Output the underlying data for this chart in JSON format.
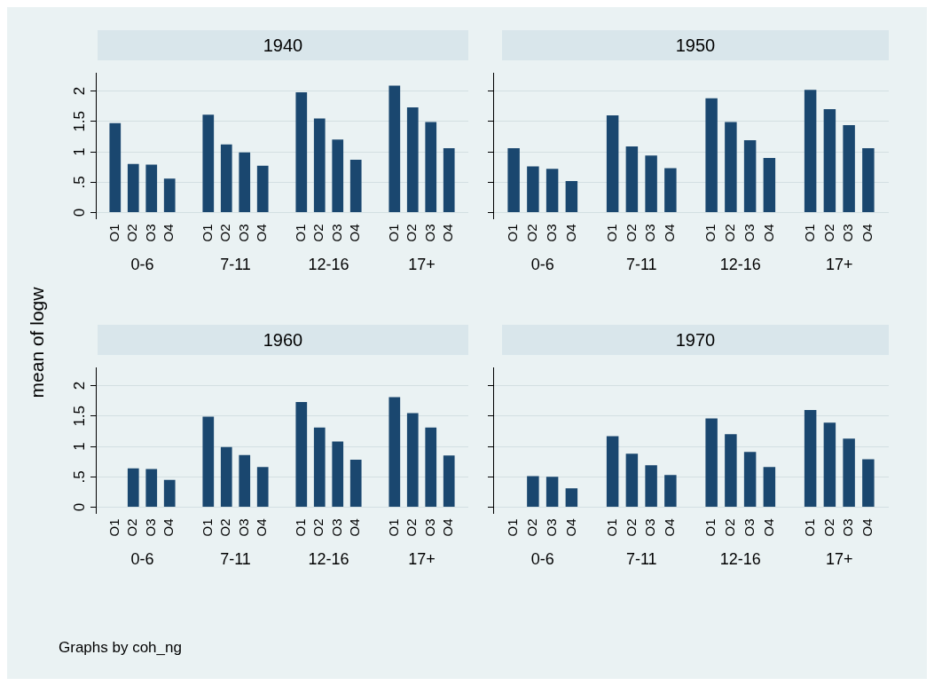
{
  "chart_data": [
    {
      "type": "bar",
      "title": "1940",
      "ylabel": "mean of logw",
      "categories": [
        "0-6",
        "7-11",
        "12-16",
        "17+"
      ],
      "grid": "y",
      "ylim": [
        -0.1,
        2.3
      ],
      "yticks": [
        0,
        {
          "value": 0.5,
          "label": ".5"
        },
        1,
        1.5,
        2
      ],
      "series": [
        {
          "name": "O1",
          "color": "#1a476f",
          "values": [
            1.47,
            1.61,
            1.98,
            2.09
          ]
        },
        {
          "name": "O2",
          "color": "#1a476f",
          "values": [
            0.8,
            1.12,
            1.55,
            1.73
          ]
        },
        {
          "name": "O3",
          "color": "#1a476f",
          "values": [
            0.79,
            0.99,
            1.2,
            1.49
          ]
        },
        {
          "name": "O4",
          "color": "#1a476f",
          "values": [
            0.56,
            0.77,
            0.87,
            1.06
          ]
        }
      ]
    },
    {
      "type": "bar",
      "title": "1950",
      "categories": [
        "0-6",
        "7-11",
        "12-16",
        "17+"
      ],
      "grid": "y",
      "tick_labels": "x",
      "ylim": [
        -0.1,
        2.3
      ],
      "yticks": [
        0,
        0.5,
        1,
        1.5,
        2
      ],
      "series": [
        {
          "name": "O1",
          "color": "#1a476f",
          "values": [
            1.06,
            1.6,
            1.88,
            2.02
          ]
        },
        {
          "name": "O2",
          "color": "#1a476f",
          "values": [
            0.76,
            1.09,
            1.49,
            1.7
          ]
        },
        {
          "name": "O3",
          "color": "#1a476f",
          "values": [
            0.72,
            0.94,
            1.19,
            1.44
          ]
        },
        {
          "name": "O4",
          "color": "#1a476f",
          "values": [
            0.52,
            0.73,
            0.9,
            1.06
          ]
        }
      ]
    },
    {
      "type": "bar",
      "title": "1960",
      "annotations": [
        "Graphs by coh_ng"
      ],
      "categories": [
        "0-6",
        "7-11",
        "12-16",
        "17+"
      ],
      "grid": "y",
      "ylim": [
        -0.1,
        2.3
      ],
      "yticks": [
        0,
        {
          "value": 0.5,
          "label": ".5"
        },
        1,
        1.5,
        2
      ],
      "series": [
        {
          "name": "O1",
          "color": "#1a476f",
          "values": [
            0,
            1.49,
            1.73,
            1.81
          ]
        },
        {
          "name": "O2",
          "color": "#1a476f",
          "values": [
            0.64,
            0.99,
            1.31,
            1.55
          ]
        },
        {
          "name": "O3",
          "color": "#1a476f",
          "values": [
            0.63,
            0.86,
            1.08,
            1.31
          ]
        },
        {
          "name": "O4",
          "color": "#1a476f",
          "values": [
            0.45,
            0.66,
            0.78,
            0.85
          ]
        }
      ]
    },
    {
      "type": "bar",
      "title": "1970",
      "categories": [
        "0-6",
        "7-11",
        "12-16",
        "17+"
      ],
      "grid": "y",
      "tick_labels": "x",
      "ylim": [
        -0.1,
        2.3
      ],
      "yticks": [
        0,
        0.5,
        1,
        1.5,
        2
      ],
      "series": [
        {
          "name": "O1",
          "color": "#1a476f",
          "values": [
            null,
            1.17,
            1.46,
            1.6
          ]
        },
        {
          "name": "O2",
          "color": "#1a476f",
          "values": [
            0.51,
            0.88,
            1.2,
            1.39
          ]
        },
        {
          "name": "O3",
          "color": "#1a476f",
          "values": [
            0.5,
            0.69,
            0.91,
            1.13
          ]
        },
        {
          "name": "O4",
          "color": "#1a476f",
          "values": [
            0.31,
            0.53,
            0.66,
            0.79
          ]
        }
      ]
    }
  ]
}
